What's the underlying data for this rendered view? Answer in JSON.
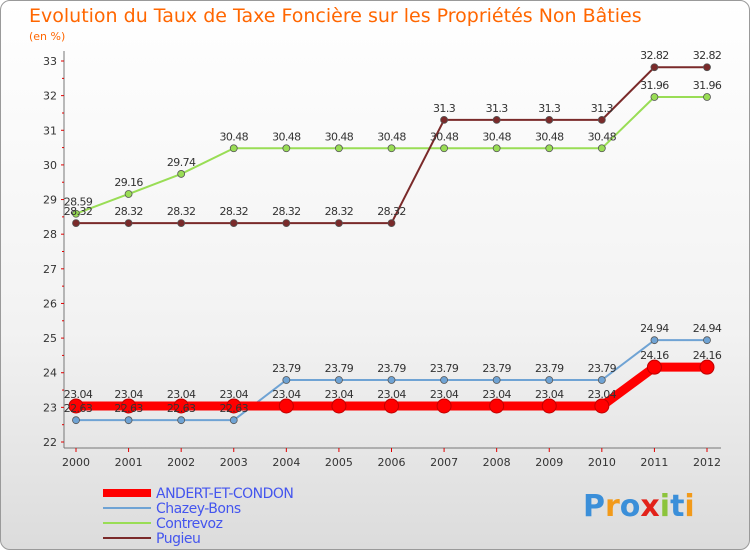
{
  "header": {
    "title": "Evolution du Taux de Taxe Foncière sur les Propriétés Non Bâties",
    "subtitle": "(en %)"
  },
  "logo": {
    "text": "Proxiti",
    "letters": [
      "P",
      "r",
      "o",
      "x",
      "i",
      "t",
      "i"
    ],
    "colors": [
      "#3b8fd9",
      "#f29a1a",
      "#3b8fd9",
      "#e2221a",
      "#8cc43c",
      "#3b8fd9",
      "#f29a1a"
    ]
  },
  "chart_data": {
    "type": "line",
    "title": "Evolution du Taux de Taxe Foncière sur les Propriétés Non Bâties",
    "ylabel": "(en %)",
    "xlabel": "",
    "ylim": [
      22,
      33
    ],
    "yticks": [
      "22",
      "23",
      "24",
      "25",
      "26",
      "27",
      "28",
      "29",
      "30",
      "31",
      "32",
      "33"
    ],
    "categories": [
      "2000",
      "2001",
      "2002",
      "2003",
      "2004",
      "2005",
      "2006",
      "2007",
      "2008",
      "2009",
      "2010",
      "2011",
      "2012"
    ],
    "grid": false,
    "legend_position": "bottom-left",
    "series": [
      {
        "name": "ANDERT-ET-CONDON",
        "color": "#ff0000",
        "values": [
          23.04,
          23.04,
          23.04,
          23.04,
          23.04,
          23.04,
          23.04,
          23.04,
          23.04,
          23.04,
          23.04,
          24.16,
          24.16
        ],
        "labels": [
          "23.04",
          "23.04",
          "23.04",
          "23.04",
          "23.04",
          "23.04",
          "23.04",
          "23.04",
          "23.04",
          "23.04",
          "23.04",
          "24.16",
          "24.16"
        ]
      },
      {
        "name": "Chazey-Bons",
        "color": "#6fa3d4",
        "values": [
          22.63,
          22.63,
          22.63,
          22.63,
          23.79,
          23.79,
          23.79,
          23.79,
          23.79,
          23.79,
          23.79,
          24.94,
          24.94
        ],
        "labels": [
          "22.63",
          "22.63",
          "22.63",
          "22.63",
          "23.79",
          "23.79",
          "23.79",
          "23.79",
          "23.79",
          "23.79",
          "23.79",
          "24.94",
          "24.94"
        ]
      },
      {
        "name": "Contrevoz",
        "color": "#99dd55",
        "values": [
          28.59,
          29.16,
          29.74,
          30.48,
          30.48,
          30.48,
          30.48,
          30.48,
          30.48,
          30.48,
          30.48,
          31.96,
          31.96
        ],
        "labels": [
          "28.59",
          "29.16",
          "29.74",
          "30.48",
          "30.48",
          "30.48",
          "30.48",
          "30.48",
          "30.48",
          "30.48",
          "30.48",
          "31.96",
          "31.96"
        ]
      },
      {
        "name": "Pugieu",
        "color": "#7a2a2a",
        "values": [
          28.32,
          28.32,
          28.32,
          28.32,
          28.32,
          28.32,
          28.32,
          31.3,
          31.3,
          31.3,
          31.3,
          32.82,
          32.82
        ],
        "labels": [
          "28.32",
          "28.32",
          "28.32",
          "28.32",
          "28.32",
          "28.32",
          "28.32",
          "31.3",
          "31.3",
          "31.3",
          "31.3",
          "32.82",
          "32.82"
        ]
      }
    ]
  }
}
